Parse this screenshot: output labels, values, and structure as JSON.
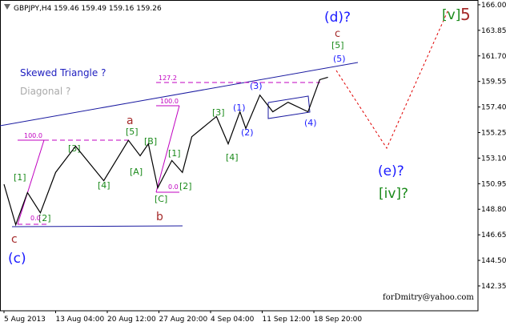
{
  "header": "GBPJPY,H4  159.46 159.49 159.16 159.26",
  "chart_data": {
    "type": "line",
    "x": [
      0,
      10,
      20,
      31,
      44,
      61,
      85,
      106,
      116,
      123,
      131,
      143,
      152,
      160,
      181,
      191,
      201,
      206,
      218,
      229,
      242,
      259,
      269,
      276
    ],
    "values": [
      150.9,
      147.5,
      150.2,
      148.5,
      151.9,
      154.1,
      151.2,
      154.6,
      153.3,
      154.3,
      150.6,
      152.9,
      151.9,
      154.9,
      156.6,
      154.3,
      157.0,
      155.6,
      158.4,
      157.0,
      157.8,
      157.0,
      159.7,
      159.9
    ],
    "color": "#000000",
    "xlim": [
      -3.4,
      403.8
    ],
    "xticks": [
      {
        "value": 0,
        "label": "5 Aug 2013"
      },
      {
        "value": 44,
        "label": "13 Aug 04:00"
      },
      {
        "value": 88,
        "label": "20 Aug 12:00"
      },
      {
        "value": 132,
        "label": "27 Aug 20:00"
      },
      {
        "value": 176,
        "label": "4 Sep 04:00"
      },
      {
        "value": 220,
        "label": "11 Sep 12:00"
      },
      {
        "value": 264,
        "label": "18 Sep 20:00"
      }
    ],
    "ylim": [
      140.26,
      166.4
    ],
    "yticks": [
      {
        "value": 166,
        "label": "166.00"
      },
      {
        "value": 163.85,
        "label": "163.85"
      },
      {
        "value": 161.7,
        "label": "161.70"
      },
      {
        "value": 159.55,
        "label": "159.55"
      },
      {
        "value": 157.4,
        "label": "157.40"
      },
      {
        "value": 155.25,
        "label": "155.25"
      },
      {
        "value": 153.1,
        "label": "153.10"
      },
      {
        "value": 150.95,
        "label": "150.95"
      },
      {
        "value": 148.8,
        "label": "148.80"
      },
      {
        "value": 146.65,
        "label": "146.65"
      },
      {
        "value": 144.5,
        "label": "144.50"
      },
      {
        "value": 142.35,
        "label": "142.35"
      }
    ]
  },
  "annotations": [
    "(d)?",
    "c",
    "[5]",
    "(5)",
    "[v]",
    "5",
    "Skewed Triangle ?",
    "Diagonal ?",
    "(3)",
    "(1)",
    "(2)",
    "(4)",
    "[3]",
    "[4]",
    "a",
    "[5]",
    "[B]",
    "[A]",
    "[C]",
    "[1]",
    "[2]",
    "b",
    "[3]",
    "[4]",
    "[1]",
    "[2]",
    "c",
    "(c)",
    "(e)?",
    "[iv]?",
    "127.2",
    "100.0",
    "100.0",
    "0.0",
    "0.0",
    "forDmitry@yahoo.com"
  ]
}
